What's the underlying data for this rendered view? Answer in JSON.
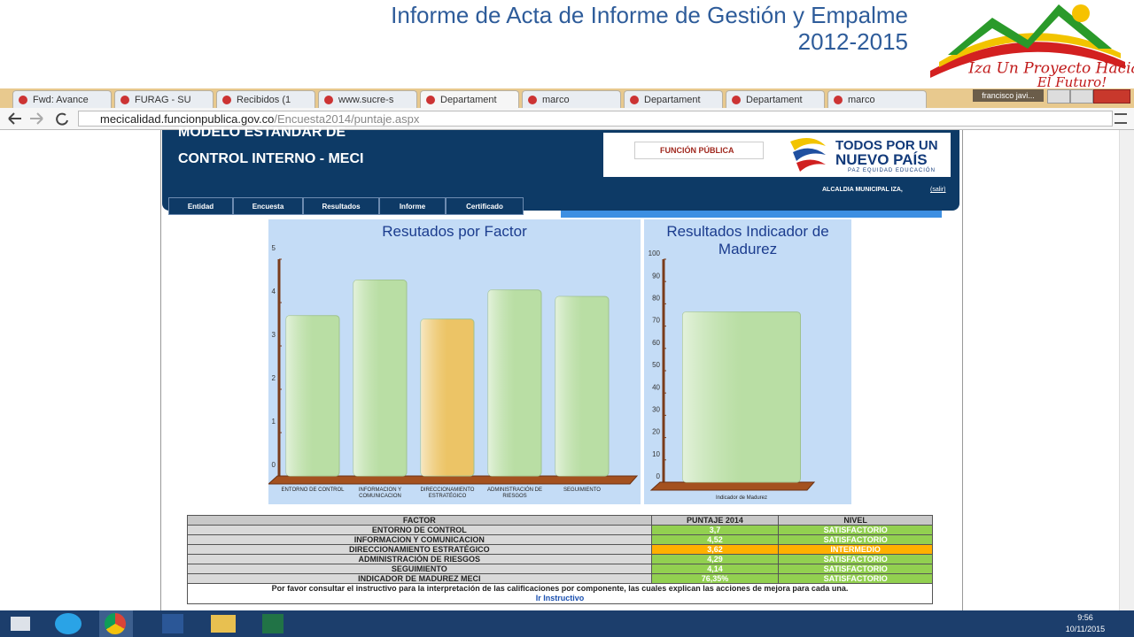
{
  "slide": {
    "title_line1": "Informe de Acta de Informe de Gestión y Empalme",
    "title_line2": "2012-2015",
    "logo_text_1": "Iza Un Proyecto Hacia",
    "logo_text_2": "El Futuro!"
  },
  "browser": {
    "tabs": [
      "Fwd: Avance",
      "FURAG - SU",
      "Recibidos (1",
      "www.sucre-s",
      "Departament",
      "marco",
      "Departament",
      "Departament",
      "marco"
    ],
    "user": "francisco javi...",
    "url_host": "mecicalidad.funcionpublica.gov.co",
    "url_path": "/Encuesta2014/puntaje.aspx"
  },
  "site": {
    "header_line1": "MODELO ESTANDAR DE",
    "header_line2": "CONTROL INTERNO - MECI",
    "logo_fp": "FUNCIÓN PÚBLICA",
    "logo_line1": "TODOS POR UN",
    "logo_line2": "NUEVO PAÍS",
    "logo_line3": "PAZ EQUIDAD EDUCACIÓN",
    "user": "ALCALDIA MUNICIPAL IZA,",
    "logout": "(salir)",
    "nav": [
      "Entidad",
      "Encuesta",
      "Resultados",
      "Informe",
      "Certificado"
    ]
  },
  "chart_data": [
    {
      "type": "bar",
      "title": "Resutados por Factor",
      "categories": [
        "ENTORNO DE CONTROL",
        "INFORMACION Y COMUNICACION",
        "DIRECCIONAMIENTO ESTRATÉGICO",
        "ADMINISTRACIÓN DE RIESGOS",
        "SEGUIMIENTO"
      ],
      "values": [
        3.7,
        4.52,
        3.62,
        4.29,
        4.14
      ],
      "colors": [
        "#b9dea4",
        "#b9dea4",
        "#ecc466",
        "#b9dea4",
        "#b9dea4"
      ],
      "ylim": [
        0,
        5
      ],
      "yticks": [
        0,
        1,
        2,
        3,
        4,
        5
      ]
    },
    {
      "type": "bar",
      "title": "Resultados Indicador de Madurez",
      "categories": [
        "Indicador de Madurez"
      ],
      "values": [
        76.35
      ],
      "colors": [
        "#b9dea4"
      ],
      "ylim": [
        0,
        100
      ],
      "yticks": [
        0,
        10,
        20,
        30,
        40,
        50,
        60,
        70,
        80,
        90,
        100
      ]
    }
  ],
  "table": {
    "header": [
      "FACTOR",
      "PUNTAJE 2014",
      "NIVEL"
    ],
    "rows": [
      [
        "ENTORNO DE CONTROL",
        "3,7",
        "SATISFACTORIO"
      ],
      [
        "INFORMACION Y COMUNICACION",
        "4,52",
        "SATISFACTORIO"
      ],
      [
        "DIRECCIONAMIENTO ESTRATÉGICO",
        "3,62",
        "INTERMEDIO"
      ],
      [
        "ADMINISTRACIÓN DE RIESGOS",
        "4,29",
        "SATISFACTORIO"
      ],
      [
        "SEGUIMIENTO",
        "4,14",
        "SATISFACTORIO"
      ],
      [
        "INDICADOR DE MADUREZ MECI",
        "76,35%",
        "SATISFACTORIO"
      ]
    ],
    "row_colors": [
      "#92d050",
      "#92d050",
      "#ffb000",
      "#92d050",
      "#92d050",
      "#92d050"
    ],
    "note": "Por favor consultar el instructivo para la interpretación de las calificaciones por componente, las cuales explican las acciones de mejora para cada una.",
    "link": "Ir Instructivo"
  },
  "taskbar": {
    "time": "9:56",
    "date": "10/11/2015"
  }
}
